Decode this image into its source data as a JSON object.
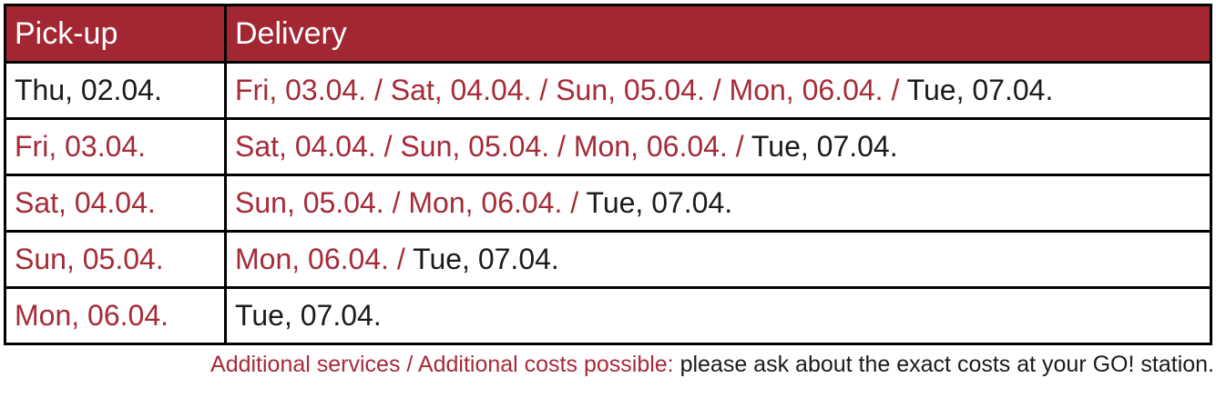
{
  "colors": {
    "header_bg": "#A22733",
    "header_text": "#FFFFFF",
    "accent_red": "#A52B38",
    "text_black": "#1B1B1B",
    "border_color": "#000000"
  },
  "table": {
    "columns": {
      "pickup": "Pick-up",
      "delivery": "Delivery"
    },
    "rows": [
      {
        "pickup": "Thu, 02.04.",
        "delivery_red": "Fri, 03.04. / Sat, 04.04. / Sun, 05.04. / Mon, 06.04. / ",
        "delivery_black": "Tue, 07.04."
      },
      {
        "pickup": "Fri, 03.04.",
        "delivery_red": "Sat, 04.04. / Sun, 05.04. / Mon, 06.04. / ",
        "delivery_black": "Tue, 07.04."
      },
      {
        "pickup": "Sat, 04.04.",
        "delivery_red": "Sun, 05.04. / Mon, 06.04. / ",
        "delivery_black": "Tue, 07.04."
      },
      {
        "pickup": "Sun, 05.04.",
        "delivery_red": "Mon, 06.04. / ",
        "delivery_black": "Tue, 07.04."
      },
      {
        "pickup": "Mon, 06.04.",
        "delivery_red": "",
        "delivery_black": "Tue, 07.04."
      }
    ]
  },
  "footer": {
    "highlight": "Additional services / Additional costs possible:",
    "rest": " please ask about the exact costs at your GO! station."
  }
}
